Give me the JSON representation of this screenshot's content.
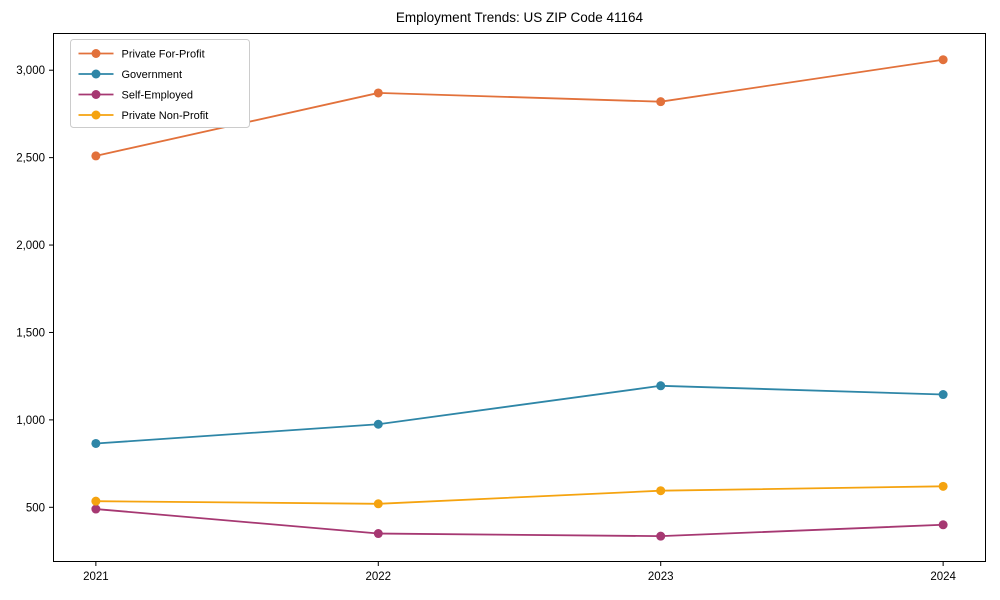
{
  "title": "Employment Trends: US ZIP Code 41164",
  "chart_data": {
    "type": "line",
    "title": "Employment Trends: US ZIP Code 41164",
    "xlabel": "",
    "ylabel": "",
    "x": [
      2021,
      2022,
      2023,
      2024
    ],
    "xtick_labels": [
      "2021",
      "2022",
      "2023",
      "2024"
    ],
    "yticks": [
      500,
      1000,
      1500,
      2000,
      2500,
      3000
    ],
    "ytick_labels": [
      "500",
      "1,000",
      "1,500",
      "2,000",
      "2,500",
      "3,000"
    ],
    "xlim": [
      2020.85,
      2024.15
    ],
    "ylim": [
      190,
      3210
    ],
    "grid": false,
    "legend_position": "upper left",
    "background": "#ffffff",
    "axis_color": "#000000",
    "series": [
      {
        "name": "Private For-Profit",
        "color": "#E2713B",
        "values": [
          2510,
          2870,
          2820,
          3060
        ]
      },
      {
        "name": "Government",
        "color": "#2E86A7",
        "values": [
          865,
          975,
          1195,
          1145
        ]
      },
      {
        "name": "Self-Employed",
        "color": "#A63872",
        "values": [
          490,
          350,
          335,
          400
        ]
      },
      {
        "name": "Private Non-Profit",
        "color": "#F5A30F",
        "values": [
          535,
          520,
          595,
          620
        ]
      }
    ]
  }
}
